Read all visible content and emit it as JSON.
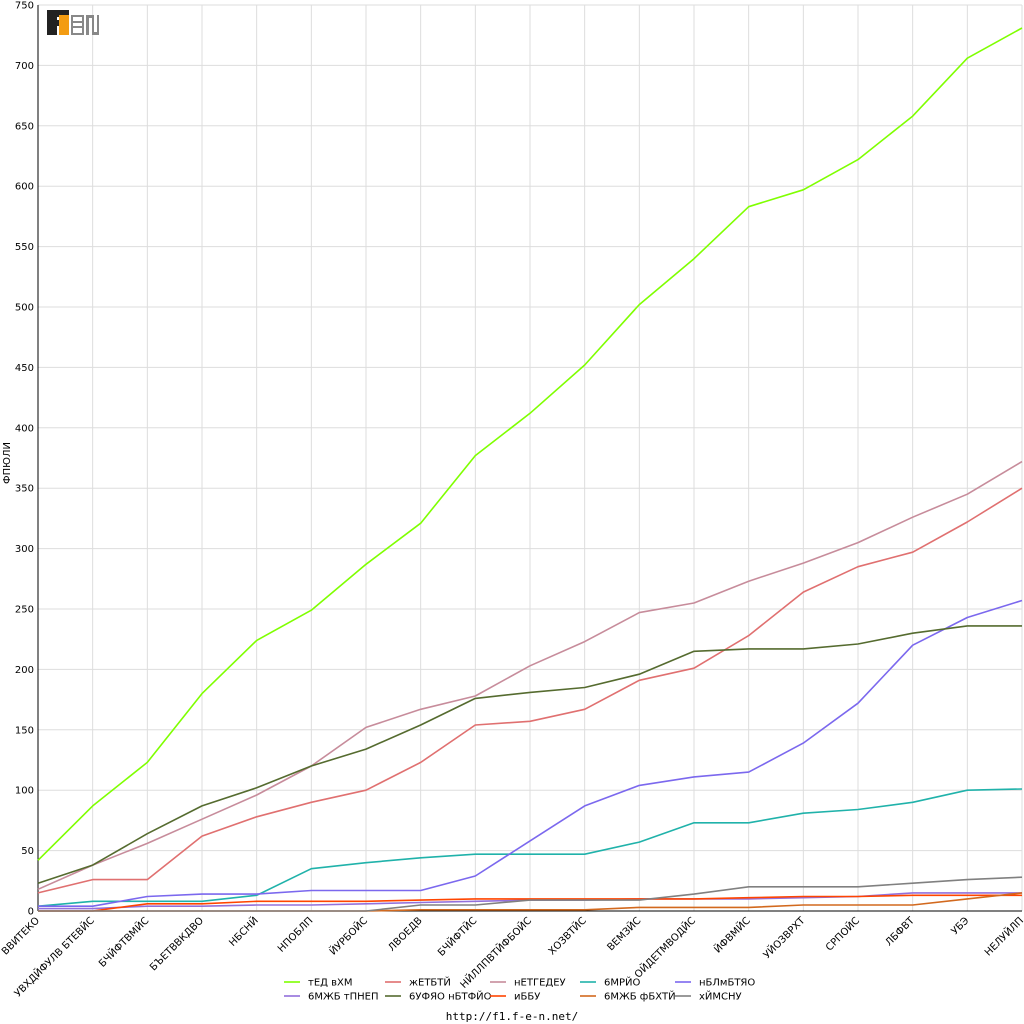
{
  "logo_text": "F1EN",
  "footer_url": "http://f1.f-e-n.net/",
  "chart_data": {
    "type": "line",
    "title": "",
    "xlabel": "",
    "ylabel": "ФПЮЛИ",
    "ylim": [
      0,
      750
    ],
    "yticks": [
      0,
      50,
      100,
      150,
      200,
      250,
      300,
      350,
      400,
      450,
      500,
      550,
      600,
      650,
      700,
      750
    ],
    "grid": true,
    "legend_position": "bottom",
    "categories": [
      "ВВИТЕКО",
      "УВХДЙФУЛВ БТЕВЙС",
      "БЧЙФТВМЙС",
      "БЪЕТВВКДВО",
      "НБСНЙ",
      "НПОБЛП",
      "ЙУРБОЙС",
      "ЛВОЕДВ",
      "БЧЙФТЙС",
      "НЙЛЛПВТЙФБОЙС",
      "ХОЗВТЙС",
      "ВЕМЗЙС",
      "ОЙДЕТМВОДЙС",
      "ЙФВМЙС",
      "УЙОЗВРХТ",
      "СРПОЙС",
      "ЛБФВТ",
      "УБЭ",
      "НЕЛУЙЛП"
    ],
    "series": [
      {
        "name": "тЕД вХМ",
        "color": "#7fff00",
        "values": [
          42,
          87,
          123,
          180,
          224,
          249,
          287,
          321,
          377,
          412,
          452,
          502,
          540,
          583,
          597,
          622,
          658,
          706,
          731
        ]
      },
      {
        "name": "жЕТБТЙ",
        "color": "#e07070",
        "values": [
          15,
          26,
          26,
          62,
          78,
          90,
          100,
          123,
          154,
          157,
          167,
          191,
          201,
          228,
          264,
          285,
          297,
          322,
          350
        ]
      },
      {
        "name": "нЕТГЕДЕУ",
        "color": "#c78c9b",
        "values": [
          18,
          38,
          56,
          76,
          96,
          120,
          152,
          167,
          178,
          203,
          223,
          247,
          255,
          273,
          288,
          305,
          326,
          345,
          372
        ]
      },
      {
        "name": "6МРЙО",
        "color": "#20b2aa",
        "values": [
          4,
          8,
          8,
          8,
          13,
          35,
          40,
          44,
          47,
          47,
          47,
          57,
          73,
          73,
          81,
          84,
          90,
          100,
          101
        ]
      },
      {
        "name": "нБЛмБТЯО",
        "color": "#7b68ee",
        "values": [
          4,
          4,
          12,
          14,
          14,
          17,
          17,
          17,
          29,
          58,
          87,
          104,
          111,
          115,
          139,
          172,
          220,
          243,
          257
        ]
      },
      {
        "name": "6МЖБ тПНЕП",
        "color": "#9370db",
        "values": [
          2,
          2,
          4,
          4,
          5,
          5,
          6,
          7,
          8,
          9,
          9,
          10,
          10,
          10,
          11,
          12,
          15,
          15,
          15
        ]
      },
      {
        "name": "6УФЯО нБТФЙО",
        "color": "#556b2f",
        "values": [
          23,
          38,
          64,
          87,
          102,
          120,
          134,
          154,
          176,
          181,
          185,
          196,
          215,
          217,
          217,
          221,
          230,
          236,
          236
        ]
      },
      {
        "name": "иББУ",
        "color": "#ff4500",
        "values": [
          0,
          0,
          6,
          6,
          8,
          8,
          8,
          9,
          10,
          10,
          10,
          10,
          10,
          11,
          12,
          12,
          13,
          13,
          13
        ]
      },
      {
        "name": "6МЖБ фБХТЙ",
        "color": "#d2691e",
        "values": [
          0,
          0,
          0,
          0,
          0,
          0,
          0,
          1,
          1,
          1,
          1,
          3,
          3,
          3,
          5,
          5,
          5,
          10,
          15
        ]
      },
      {
        "name": "хЙМСНУ",
        "color": "#808080",
        "values": [
          0,
          0,
          0,
          0,
          0,
          0,
          0,
          5,
          5,
          9,
          9,
          9,
          14,
          20,
          20,
          20,
          23,
          26,
          28
        ]
      }
    ]
  }
}
